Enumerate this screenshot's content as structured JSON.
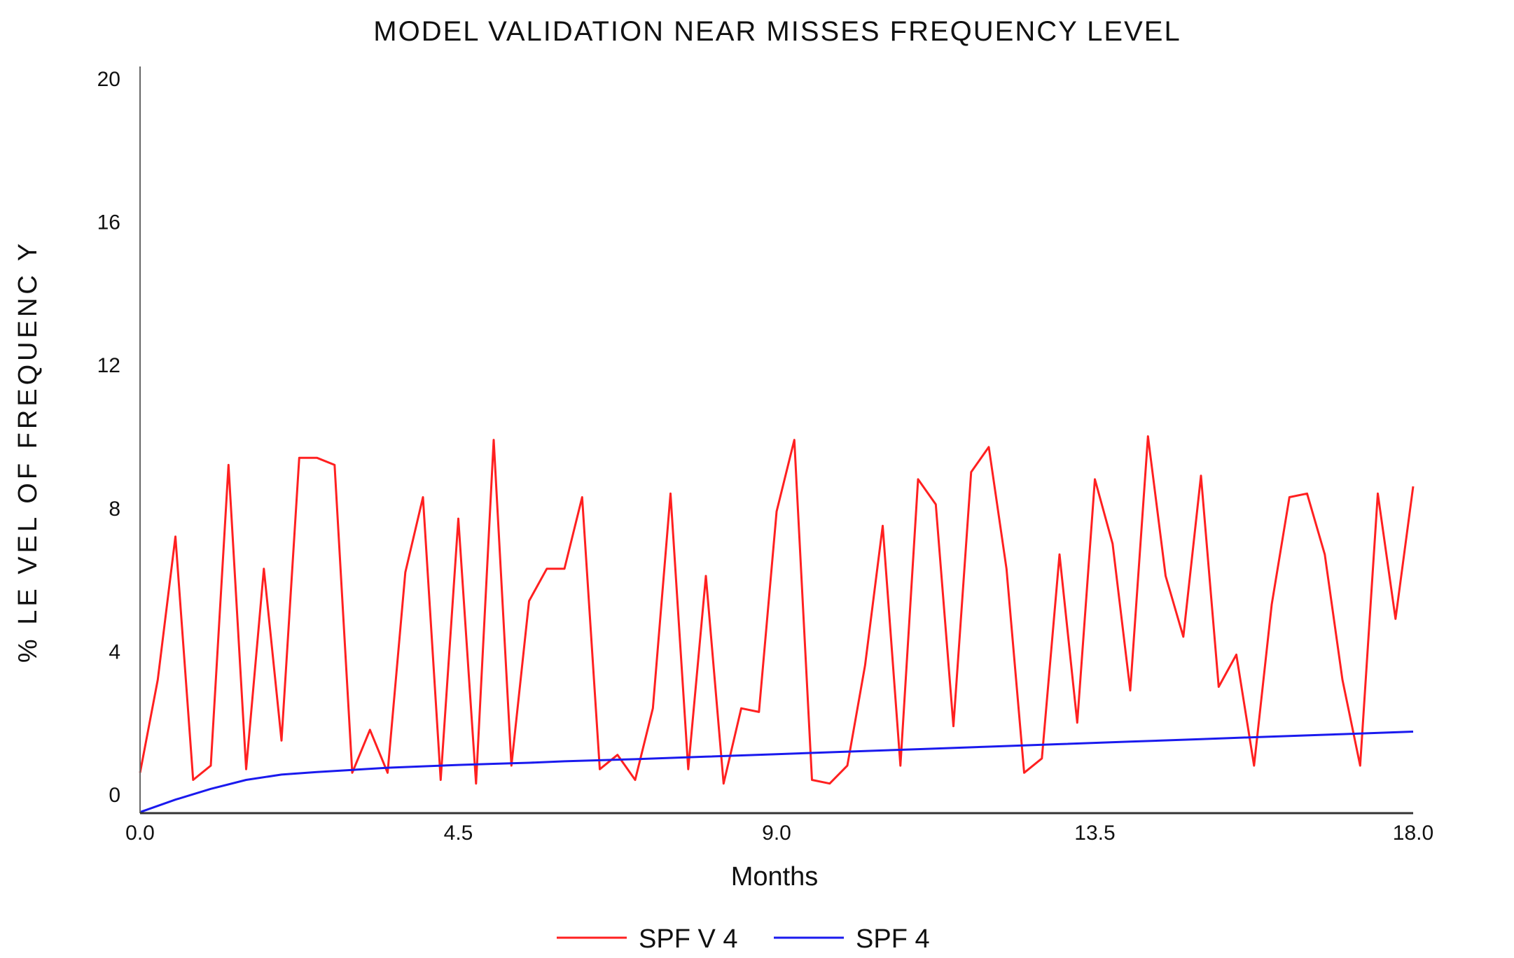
{
  "chart_data": {
    "type": "line",
    "title": "MODEL VALIDATION NEAR MISSES  FREQUENCY LEVEL",
    "xlabel": "Months",
    "ylabel": "% LE VEL OF FREQUENC Y",
    "xlim": [
      0,
      18
    ],
    "ylim": [
      -0.5,
      20
    ],
    "x_ticks": [
      "0.0",
      "4.5",
      "9.0",
      "13.5",
      "18.0"
    ],
    "y_ticks": [
      "0",
      "4",
      "8",
      "12",
      "16",
      "20"
    ],
    "legend_position": "bottom-center",
    "grid": false,
    "series": [
      {
        "name": "SPF V 4",
        "color": "#ff2020",
        "x": [
          0.0,
          0.25,
          0.5,
          0.75,
          1.0,
          1.25,
          1.5,
          1.75,
          2.0,
          2.25,
          2.5,
          2.75,
          3.0,
          3.25,
          3.5,
          3.75,
          4.0,
          4.25,
          4.5,
          4.75,
          5.0,
          5.25,
          5.5,
          5.75,
          6.0,
          6.25,
          6.5,
          6.75,
          7.0,
          7.25,
          7.5,
          7.75,
          8.0,
          8.25,
          8.5,
          8.75,
          9.0,
          9.25,
          9.5,
          9.75,
          10.0,
          10.25,
          10.5,
          10.75,
          11.0,
          11.25,
          11.5,
          11.75,
          12.0,
          12.25,
          12.5,
          12.75,
          13.0,
          13.25,
          13.5,
          13.75,
          14.0,
          14.25,
          14.5,
          14.75,
          15.0,
          15.25,
          15.5,
          15.75,
          16.0,
          16.25,
          16.5,
          16.75,
          17.0,
          17.25,
          17.5,
          17.75,
          18.0
        ],
        "values": [
          0.6,
          3.2,
          7.2,
          0.4,
          0.8,
          9.2,
          0.7,
          6.3,
          1.5,
          9.4,
          9.4,
          9.2,
          0.6,
          1.8,
          0.6,
          6.2,
          8.3,
          0.4,
          7.7,
          0.3,
          9.9,
          0.8,
          5.4,
          6.3,
          6.3,
          8.3,
          0.7,
          1.1,
          0.4,
          2.4,
          8.4,
          0.7,
          6.1,
          0.3,
          2.4,
          2.3,
          7.9,
          9.9,
          0.4,
          0.3,
          0.8,
          3.6,
          7.5,
          0.8,
          8.8,
          8.1,
          1.9,
          9.0,
          9.7,
          6.3,
          0.6,
          1.0,
          6.7,
          2.0,
          8.8,
          7.0,
          2.9,
          10.0,
          6.1,
          4.4,
          8.9,
          3.0,
          3.9,
          0.8,
          5.3,
          8.3,
          8.4,
          6.7,
          3.2,
          0.8,
          8.4,
          4.9,
          8.6
        ]
      },
      {
        "name": "SPF 4",
        "color": "#1a1aee",
        "x": [
          0.0,
          0.5,
          1.0,
          1.5,
          2.0,
          2.5,
          3.0,
          3.5,
          4.0,
          4.5,
          5.0,
          5.5,
          6.0,
          7.0,
          8.0,
          9.0,
          10.0,
          11.0,
          12.0,
          13.0,
          14.0,
          15.0,
          16.0,
          17.0,
          18.0
        ],
        "values": [
          -0.5,
          -0.15,
          0.15,
          0.4,
          0.55,
          0.62,
          0.68,
          0.74,
          0.78,
          0.82,
          0.85,
          0.88,
          0.92,
          0.98,
          1.05,
          1.12,
          1.19,
          1.26,
          1.33,
          1.4,
          1.47,
          1.54,
          1.61,
          1.68,
          1.75
        ]
      }
    ]
  }
}
